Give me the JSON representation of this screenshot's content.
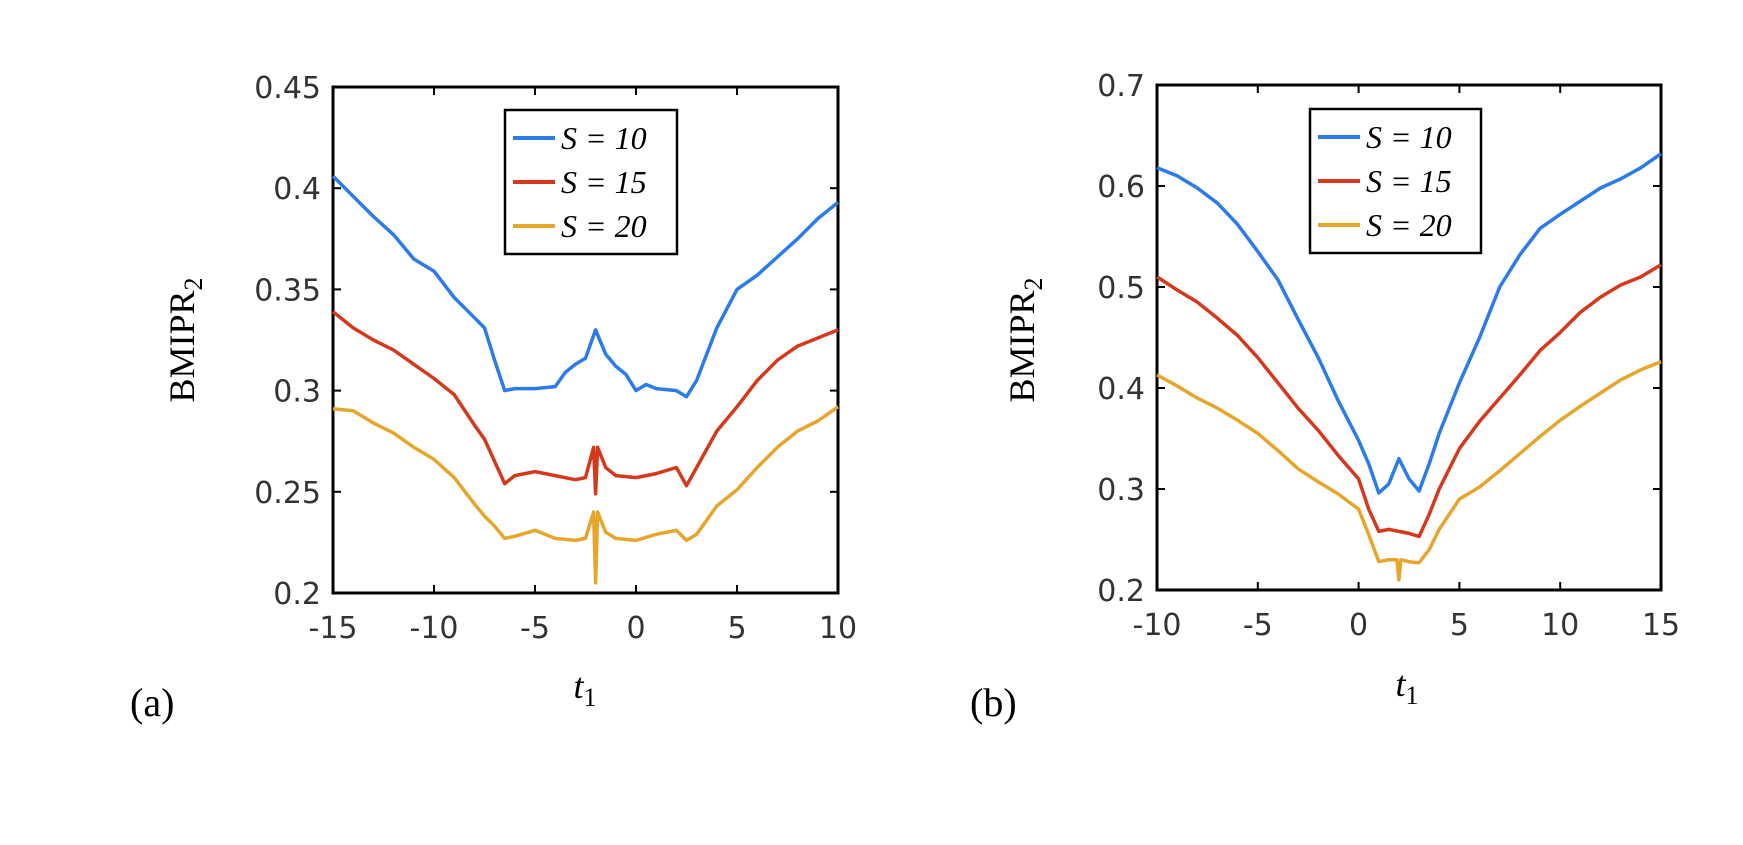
{
  "chart_data": [
    {
      "type": "line",
      "panel_label": "(a)",
      "xlabel": "t",
      "xlabel_sub": "1",
      "ylabel": "BMIPR",
      "ylabel_sub": "2",
      "xlim": [
        -15,
        10
      ],
      "ylim": [
        0.2,
        0.45
      ],
      "xticks": [
        -15,
        -10,
        -5,
        0,
        5,
        10
      ],
      "xtick_labels": [
        "-15",
        "-10",
        "-5",
        "0",
        "5",
        "10"
      ],
      "yticks": [
        0.2,
        0.25,
        0.3,
        0.35,
        0.4,
        0.45
      ],
      "ytick_labels": [
        "0.2",
        "0.25",
        "0.3",
        "0.35",
        "0.4",
        "0.45"
      ],
      "legend": "top-center",
      "series": [
        {
          "name": "S = 10",
          "color": "#2b7ce9",
          "x": [
            -15,
            -14,
            -13,
            -12,
            -11,
            -10,
            -9,
            -8,
            -7.5,
            -7,
            -6.5,
            -6,
            -5,
            -4,
            -3.5,
            -3,
            -2.5,
            -2,
            -1.5,
            -1,
            -0.5,
            0,
            0.5,
            1,
            2,
            2.5,
            3,
            4,
            5,
            6,
            7,
            8,
            9,
            10
          ],
          "y": [
            0.406,
            0.396,
            0.386,
            0.377,
            0.365,
            0.359,
            0.346,
            0.336,
            0.331,
            0.315,
            0.3,
            0.301,
            0.301,
            0.302,
            0.309,
            0.313,
            0.316,
            0.33,
            0.318,
            0.312,
            0.308,
            0.3,
            0.303,
            0.301,
            0.3,
            0.297,
            0.305,
            0.331,
            0.35,
            0.357,
            0.366,
            0.375,
            0.385,
            0.393
          ]
        },
        {
          "name": "S = 15",
          "color": "#d4391d",
          "x": [
            -15,
            -14,
            -13,
            -12,
            -11,
            -10,
            -9,
            -8,
            -7.5,
            -7,
            -6.5,
            -6,
            -5,
            -4,
            -3,
            -2.5,
            -2.1,
            -2,
            -1.9,
            -1.5,
            -1,
            0,
            1,
            2,
            2.5,
            3,
            4,
            5,
            6,
            7,
            8,
            9,
            10
          ],
          "y": [
            0.339,
            0.331,
            0.325,
            0.32,
            0.313,
            0.306,
            0.298,
            0.283,
            0.276,
            0.265,
            0.254,
            0.258,
            0.26,
            0.258,
            0.256,
            0.257,
            0.272,
            0.249,
            0.272,
            0.262,
            0.258,
            0.257,
            0.259,
            0.262,
            0.253,
            0.262,
            0.28,
            0.292,
            0.305,
            0.315,
            0.322,
            0.326,
            0.33
          ]
        },
        {
          "name": "S = 20",
          "color": "#e6a52b",
          "x": [
            -15,
            -14,
            -13,
            -12,
            -11,
            -10,
            -9,
            -8,
            -7.5,
            -7,
            -6.5,
            -6,
            -5,
            -4,
            -3,
            -2.5,
            -2.1,
            -2,
            -1.9,
            -1.5,
            -1,
            0,
            1,
            2,
            2.5,
            3,
            4,
            5,
            6,
            7,
            8,
            9,
            10
          ],
          "y": [
            0.291,
            0.29,
            0.284,
            0.279,
            0.272,
            0.266,
            0.257,
            0.244,
            0.238,
            0.233,
            0.227,
            0.228,
            0.231,
            0.227,
            0.226,
            0.227,
            0.24,
            0.205,
            0.24,
            0.23,
            0.227,
            0.226,
            0.229,
            0.231,
            0.226,
            0.229,
            0.243,
            0.251,
            0.262,
            0.272,
            0.28,
            0.285,
            0.292
          ]
        }
      ]
    },
    {
      "type": "line",
      "panel_label": "(b)",
      "xlabel": "t",
      "xlabel_sub": "1",
      "ylabel": "BMIPR",
      "ylabel_sub": "2",
      "xlim": [
        -10,
        15
      ],
      "ylim": [
        0.2,
        0.7
      ],
      "xticks": [
        -10,
        -5,
        0,
        5,
        10,
        15
      ],
      "xtick_labels": [
        "-10",
        "-5",
        "0",
        "5",
        "10",
        "15"
      ],
      "yticks": [
        0.2,
        0.3,
        0.4,
        0.5,
        0.6,
        0.7
      ],
      "ytick_labels": [
        "0.2",
        "0.3",
        "0.4",
        "0.5",
        "0.6",
        "0.7"
      ],
      "legend": "top-center",
      "series": [
        {
          "name": "S = 10",
          "color": "#2b7ce9",
          "x": [
            -10,
            -9,
            -8,
            -7,
            -6,
            -5,
            -4,
            -3,
            -2,
            -1,
            0,
            0.5,
            1,
            1.5,
            2,
            2.5,
            3,
            3.5,
            4,
            5,
            6,
            7,
            8,
            9,
            10,
            11,
            12,
            13,
            14,
            15
          ],
          "y": [
            0.618,
            0.61,
            0.598,
            0.583,
            0.562,
            0.535,
            0.507,
            0.468,
            0.43,
            0.387,
            0.348,
            0.325,
            0.296,
            0.305,
            0.33,
            0.31,
            0.298,
            0.325,
            0.355,
            0.405,
            0.45,
            0.5,
            0.532,
            0.558,
            0.572,
            0.585,
            0.598,
            0.607,
            0.618,
            0.632
          ]
        },
        {
          "name": "S = 15",
          "color": "#d4391d",
          "x": [
            -10,
            -9,
            -8,
            -7,
            -6,
            -5,
            -4,
            -3,
            -2,
            -1,
            0,
            0.5,
            1,
            1.5,
            2,
            2.5,
            3,
            3.5,
            4,
            5,
            6,
            7,
            8,
            9,
            10,
            11,
            12,
            13,
            14,
            15
          ],
          "y": [
            0.51,
            0.497,
            0.485,
            0.469,
            0.452,
            0.43,
            0.405,
            0.38,
            0.358,
            0.333,
            0.31,
            0.28,
            0.258,
            0.26,
            0.258,
            0.256,
            0.253,
            0.275,
            0.3,
            0.34,
            0.367,
            0.39,
            0.413,
            0.437,
            0.455,
            0.475,
            0.49,
            0.502,
            0.51,
            0.522
          ]
        },
        {
          "name": "S = 20",
          "color": "#e6a52b",
          "x": [
            -10,
            -9,
            -8,
            -7,
            -6,
            -5,
            -4,
            -3,
            -2,
            -1,
            0,
            0.5,
            1,
            1.5,
            1.9,
            2,
            2.1,
            2.5,
            3,
            3.5,
            4,
            5,
            6,
            7,
            8,
            9,
            10,
            11,
            12,
            13,
            14,
            15
          ],
          "y": [
            0.413,
            0.402,
            0.39,
            0.38,
            0.368,
            0.355,
            0.338,
            0.32,
            0.307,
            0.295,
            0.28,
            0.255,
            0.228,
            0.23,
            0.23,
            0.21,
            0.23,
            0.228,
            0.227,
            0.24,
            0.26,
            0.29,
            0.302,
            0.318,
            0.335,
            0.352,
            0.368,
            0.382,
            0.395,
            0.408,
            0.418,
            0.426
          ]
        }
      ]
    }
  ]
}
